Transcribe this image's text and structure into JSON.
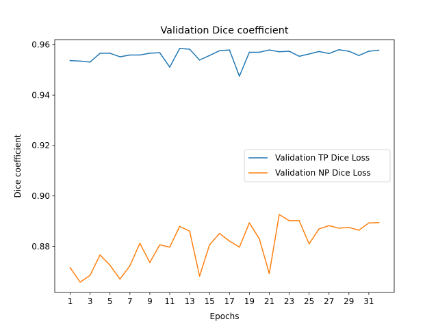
{
  "chart_data": {
    "type": "line",
    "title": "Validation Dice coefficient",
    "xlabel": "Epochs",
    "ylabel": "Dice coefficient",
    "x": [
      1,
      2,
      3,
      4,
      5,
      6,
      7,
      8,
      9,
      10,
      11,
      12,
      13,
      14,
      15,
      16,
      17,
      18,
      19,
      20,
      21,
      22,
      23,
      24,
      25,
      26,
      27,
      28,
      29,
      30,
      31,
      32
    ],
    "xticks": [
      "1",
      "3",
      "5",
      "7",
      "9",
      "11",
      "13",
      "15",
      "17",
      "19",
      "21",
      "23",
      "25",
      "27",
      "29",
      "31"
    ],
    "yticks": [
      "0.88",
      "0.90",
      "0.92",
      "0.94",
      "0.96"
    ],
    "xlim": [
      -0.55,
      33.55
    ],
    "ylim": [
      0.8617,
      0.962
    ],
    "grid": false,
    "legend_position": "center-right",
    "series": [
      {
        "name": "Validation TP Dice Loss",
        "color": "#1f77b4",
        "values": [
          0.9537,
          0.9535,
          0.9531,
          0.9566,
          0.9566,
          0.9552,
          0.9559,
          0.9559,
          0.9566,
          0.9568,
          0.9511,
          0.9585,
          0.9582,
          0.9539,
          0.9557,
          0.9576,
          0.9579,
          0.9475,
          0.957,
          0.957,
          0.9579,
          0.9572,
          0.9574,
          0.9554,
          0.9563,
          0.9573,
          0.9565,
          0.958,
          0.9574,
          0.9557,
          0.9574,
          0.9578
        ]
      },
      {
        "name": "Validation NP Dice Loss",
        "color": "#ff7f0e",
        "values": [
          0.8715,
          0.8658,
          0.8685,
          0.8766,
          0.8725,
          0.867,
          0.8723,
          0.8812,
          0.8736,
          0.8806,
          0.8797,
          0.8879,
          0.886,
          0.8682,
          0.8806,
          0.8851,
          0.8821,
          0.8797,
          0.8893,
          0.883,
          0.8692,
          0.8926,
          0.8902,
          0.8902,
          0.881,
          0.8869,
          0.8882,
          0.8872,
          0.8875,
          0.8864,
          0.8893,
          0.8894
        ]
      }
    ]
  }
}
